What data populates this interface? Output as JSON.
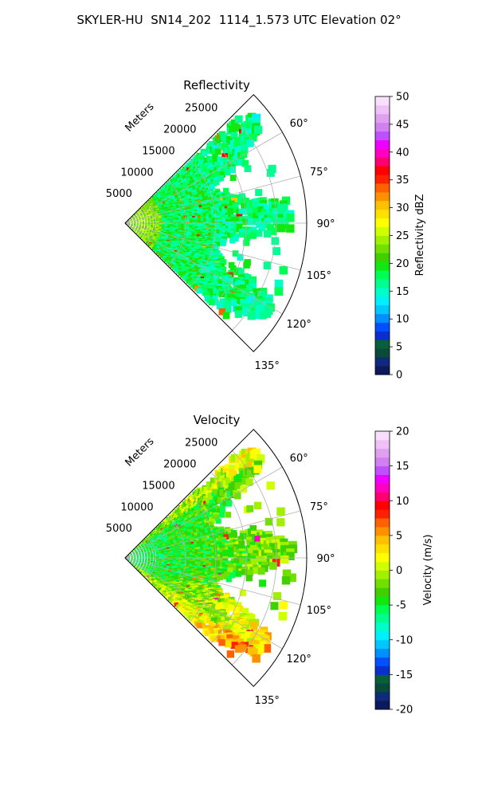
{
  "page": {
    "title": "SKYLER-HU  SN14_202  1114_1.573 UTC Elevation 02°"
  },
  "chart_data": [
    {
      "type": "heatmap",
      "subtype": "polar-sector-ppi",
      "title": "Reflectivity",
      "radial_label": "Meters",
      "radial_ticks": [
        5000,
        10000,
        15000,
        20000,
        25000
      ],
      "radial_range": [
        0,
        30000
      ],
      "azimuth_range_deg": [
        45,
        135
      ],
      "azimuth_ticks_deg": [
        60,
        75,
        90,
        105,
        120,
        135
      ],
      "azimuth_tick_labels": [
        "60°",
        "75°",
        "90°",
        "105°",
        "120°",
        "135°"
      ],
      "grid": true,
      "colorbar": {
        "label": "Reflectivity dBZ",
        "range": [
          0,
          50
        ],
        "ticks": [
          0,
          5,
          10,
          15,
          20,
          25,
          30,
          35,
          40,
          45,
          50
        ],
        "colors": [
          "#0b1a5c",
          "#0f2a7a",
          "#0a4a3a",
          "#08603a",
          "#0a2fd0",
          "#0050ff",
          "#0090ff",
          "#00c8ff",
          "#00f0ff",
          "#00ffc8",
          "#00ff90",
          "#00ff50",
          "#10e810",
          "#40d000",
          "#70e000",
          "#a0f000",
          "#d0ff00",
          "#ffff00",
          "#ffe000",
          "#ffc000",
          "#ff9000",
          "#ff6000",
          "#ff2000",
          "#ff0000",
          "#ff0070",
          "#ff00c0",
          "#f000ff",
          "#c050ff",
          "#d080f0",
          "#e0a0f0",
          "#f0c0f8",
          "#f8e0fc"
        ]
      },
      "field_summary": {
        "dominant_range_dbz": [
          14,
          20
        ],
        "echo_extent_m": 28000,
        "peak_dbz": 36
      }
    },
    {
      "type": "heatmap",
      "subtype": "polar-sector-ppi",
      "title": "Velocity",
      "radial_label": "Meters",
      "radial_ticks": [
        5000,
        10000,
        15000,
        20000,
        25000
      ],
      "radial_range": [
        0,
        30000
      ],
      "azimuth_range_deg": [
        45,
        135
      ],
      "azimuth_ticks_deg": [
        60,
        75,
        90,
        105,
        120,
        135
      ],
      "azimuth_tick_labels": [
        "60°",
        "75°",
        "90°",
        "105°",
        "120°",
        "135°"
      ],
      "grid": true,
      "colorbar": {
        "label": "Velocity (m/s)",
        "range": [
          -20,
          20
        ],
        "ticks": [
          -20,
          -15,
          -10,
          -5,
          0,
          5,
          10,
          15,
          20
        ],
        "colors": [
          "#0b1a5c",
          "#0f2a7a",
          "#0a4a3a",
          "#08603a",
          "#0a2fd0",
          "#0050ff",
          "#0090ff",
          "#00c8ff",
          "#00f0ff",
          "#00ffc8",
          "#00ff90",
          "#00ff50",
          "#10e810",
          "#40d000",
          "#70e000",
          "#a0f000",
          "#d0ff00",
          "#ffff00",
          "#ffe000",
          "#ffc000",
          "#ff9000",
          "#ff6000",
          "#ff2000",
          "#ff0000",
          "#ff0070",
          "#ff00c0",
          "#f000ff",
          "#c050ff",
          "#d080f0",
          "#e0a0f0",
          "#f0c0f8",
          "#f8e0fc"
        ]
      },
      "field_summary": {
        "dominant_range_ms": [
          -10,
          0
        ],
        "echo_extent_m": 28000,
        "peak_ms": 12
      }
    }
  ]
}
